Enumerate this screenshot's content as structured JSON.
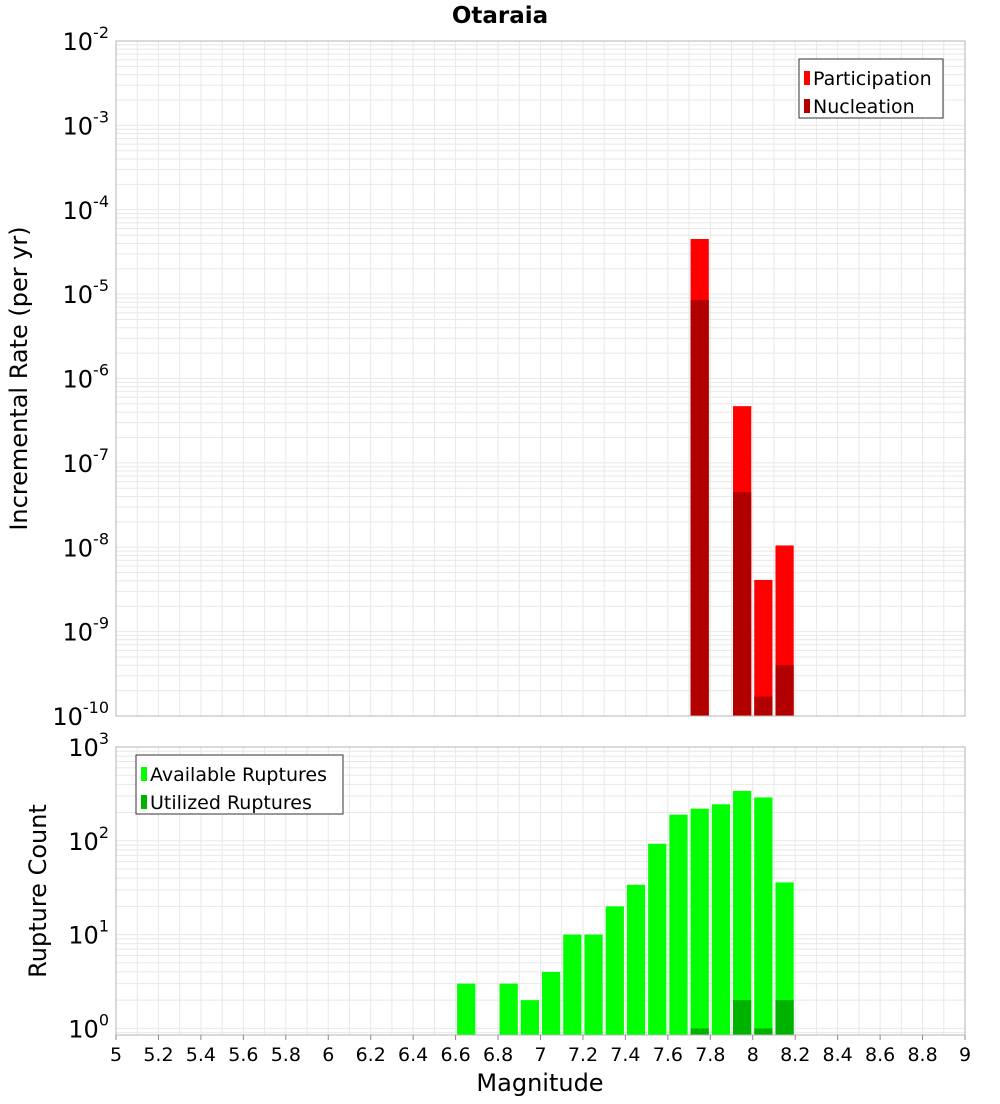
{
  "colors": {
    "participation": "#ff0000",
    "nucleation": "#b20000",
    "available": "#00ff00",
    "utilized": "#00b200",
    "grid": "#e8e8e8",
    "frame": "#b4b4b4"
  },
  "chart_data": [
    {
      "type": "bar",
      "title": "Otaraia",
      "xlabel": "",
      "ylabel": "Incremental Rate (per yr)",
      "scale": "log",
      "xlim": [
        5,
        9
      ],
      "ylim_exp": [
        -10,
        -2
      ],
      "ytick_exponents": [
        "-10",
        "-9",
        "-8",
        "-7",
        "-6",
        "-5",
        "-4",
        "-3",
        "-2"
      ],
      "bin_width": 0.1,
      "grid": true,
      "legend_position": "top-right",
      "series": [
        {
          "name": "Participation",
          "color_key": "participation",
          "x": [
            7.75,
            7.95,
            8.05,
            8.15
          ],
          "values": [
            4.5e-05,
            4.7e-07,
            4.1e-09,
            1.05e-08
          ]
        },
        {
          "name": "Nucleation",
          "color_key": "nucleation",
          "x": [
            7.75,
            7.95,
            8.05,
            8.15
          ],
          "values": [
            8.5e-06,
            4.5e-08,
            1.7e-10,
            4e-10
          ]
        }
      ]
    },
    {
      "type": "bar",
      "title": "",
      "xlabel": "Magnitude",
      "ylabel": "Rupture Count",
      "scale": "log",
      "xlim": [
        5,
        9
      ],
      "ylim_exp": [
        0,
        3
      ],
      "ymin": 0.85,
      "ytick_exponents": [
        "0",
        "1",
        "2",
        "3"
      ],
      "xticks": [
        "5",
        "5.2",
        "5.4",
        "5.6",
        "5.8",
        "6",
        "6.2",
        "6.4",
        "6.6",
        "6.8",
        "7",
        "7.2",
        "7.4",
        "7.6",
        "7.8",
        "8",
        "8.2",
        "8.4",
        "8.6",
        "8.8",
        "9"
      ],
      "bin_width": 0.1,
      "grid": true,
      "legend_position": "top-left",
      "series": [
        {
          "name": "Available Ruptures",
          "color_key": "available",
          "x": [
            6.65,
            6.85,
            6.95,
            7.05,
            7.15,
            7.25,
            7.35,
            7.45,
            7.55,
            7.65,
            7.75,
            7.85,
            7.95,
            8.05,
            8.15
          ],
          "values": [
            3,
            3,
            2,
            4,
            10,
            10,
            20,
            34,
            93,
            190,
            220,
            245,
            340,
            290,
            36
          ]
        },
        {
          "name": "Utilized Ruptures",
          "color_key": "utilized",
          "x": [
            7.75,
            7.95,
            8.05,
            8.15
          ],
          "values": [
            1,
            2,
            1,
            2
          ]
        }
      ]
    }
  ]
}
